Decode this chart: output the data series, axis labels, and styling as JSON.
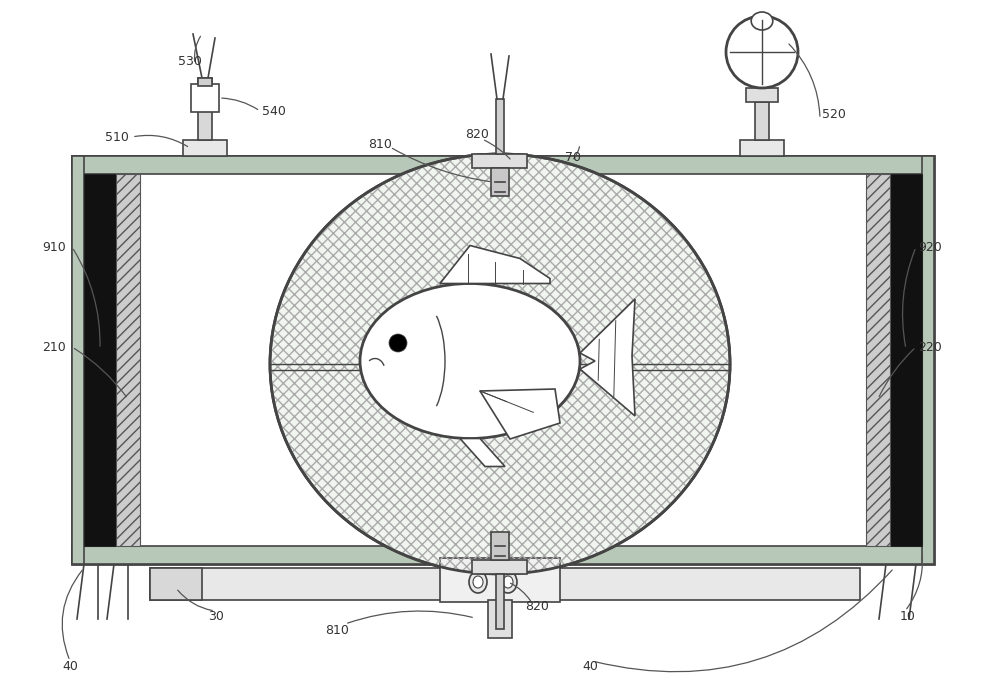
{
  "bg_color": "#ffffff",
  "lc": "#444444",
  "lc_dark": "#222222",
  "label_color": "#333333",
  "ellipse_fill": "#f0f5f0",
  "hatch_gray": "#bbbbbb",
  "frame_gray": "#d8d8d8",
  "electrode_fill": "#000000",
  "hatch_fill": "#e0e0e0"
}
